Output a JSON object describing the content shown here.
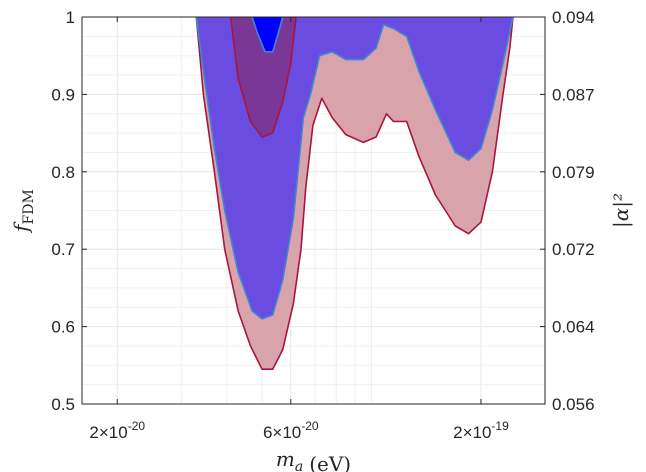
{
  "chart_data": {
    "type": "area",
    "xscale": "log",
    "xlim": [
      1.6e-20,
      3e-19
    ],
    "ylim": [
      0.5,
      1.0
    ],
    "x_ticks": [
      {
        "value": 2e-20,
        "mant": "2",
        "exp": "-20"
      },
      {
        "value": 6e-20,
        "mant": "6",
        "exp": "-20"
      },
      {
        "value": 2e-19,
        "mant": "2",
        "exp": "-19"
      }
    ],
    "y_ticks": [
      0.5,
      0.6,
      0.7,
      0.8,
      0.9,
      1
    ],
    "y_ticks_right": [
      "0.056",
      "0.064",
      "0.072",
      "0.079",
      "0.087",
      "0.094"
    ],
    "xlabel": {
      "var": "m",
      "sub": "a",
      "unit": "(eV)"
    },
    "ylabel": {
      "var": "f",
      "sub": "FDM"
    },
    "ylabel_right": "|α|²",
    "grid": true,
    "colors": {
      "outer_fill": "#d9a3ac",
      "outer_edge": "#a8153e",
      "middle_fill": "#6a4de0",
      "middle_edge": "#3f87d0",
      "inner_fill": "#0000ff",
      "overlap_fill": "#7a3796"
    },
    "regions": [
      {
        "role": "outer",
        "points": [
          [
            3.3e-20,
            1.0
          ],
          [
            3.45e-20,
            0.9
          ],
          [
            3.7e-20,
            0.8
          ],
          [
            3.95e-20,
            0.7
          ],
          [
            4.3e-20,
            0.62
          ],
          [
            4.65e-20,
            0.575
          ],
          [
            5e-20,
            0.545
          ],
          [
            5.35e-20,
            0.545
          ],
          [
            5.7e-20,
            0.57
          ],
          [
            6.1e-20,
            0.63
          ],
          [
            6.4e-20,
            0.7
          ],
          [
            6.6e-20,
            0.78
          ],
          [
            6.9e-20,
            0.86
          ],
          [
            7.3e-20,
            0.895
          ],
          [
            7.8e-20,
            0.87
          ],
          [
            8.5e-20,
            0.848
          ],
          [
            9.5e-20,
            0.838
          ],
          [
            1.03e-19,
            0.845
          ],
          [
            1.1e-19,
            0.875
          ],
          [
            1.15e-19,
            0.865
          ],
          [
            1.25e-19,
            0.865
          ],
          [
            1.35e-19,
            0.82
          ],
          [
            1.5e-19,
            0.77
          ],
          [
            1.7e-19,
            0.73
          ],
          [
            1.85e-19,
            0.72
          ],
          [
            2e-19,
            0.735
          ],
          [
            2.15e-19,
            0.8
          ],
          [
            2.3e-19,
            0.9
          ],
          [
            2.4e-19,
            0.96
          ],
          [
            2.45e-19,
            1.0
          ]
        ]
      },
      {
        "role": "middle",
        "points": [
          [
            3.3e-20,
            1.0
          ],
          [
            3.45e-20,
            0.93
          ],
          [
            3.7e-20,
            0.83
          ],
          [
            3.95e-20,
            0.75
          ],
          [
            4.3e-20,
            0.67
          ],
          [
            4.7e-20,
            0.62
          ],
          [
            5e-20,
            0.61
          ],
          [
            5.35e-20,
            0.615
          ],
          [
            5.7e-20,
            0.66
          ],
          [
            6.1e-20,
            0.74
          ],
          [
            6.5e-20,
            0.87
          ],
          [
            6.8e-20,
            0.9
          ],
          [
            7.2e-20,
            0.95
          ],
          [
            7.8e-20,
            0.955
          ],
          [
            8.5e-20,
            0.945
          ],
          [
            9.5e-20,
            0.945
          ],
          [
            1.03e-19,
            0.96
          ],
          [
            1.08e-19,
            0.99
          ],
          [
            1.15e-19,
            0.985
          ],
          [
            1.25e-19,
            0.975
          ],
          [
            1.35e-19,
            0.93
          ],
          [
            1.5e-19,
            0.88
          ],
          [
            1.7e-19,
            0.825
          ],
          [
            1.85e-19,
            0.815
          ],
          [
            2e-19,
            0.83
          ],
          [
            2.15e-19,
            0.88
          ],
          [
            2.3e-19,
            0.94
          ],
          [
            2.45e-19,
            1.0
          ]
        ]
      },
      {
        "role": "overlap",
        "points": [
          [
            4.1e-20,
            1.0
          ],
          [
            4.3e-20,
            0.92
          ],
          [
            4.65e-20,
            0.865
          ],
          [
            5e-20,
            0.845
          ],
          [
            5.35e-20,
            0.85
          ],
          [
            5.7e-20,
            0.89
          ],
          [
            6e-20,
            0.94
          ],
          [
            6.2e-20,
            1.0
          ]
        ]
      },
      {
        "role": "inner",
        "points": [
          [
            4.7e-20,
            1.0
          ],
          [
            4.85e-20,
            0.98
          ],
          [
            5.1e-20,
            0.955
          ],
          [
            5.35e-20,
            0.955
          ],
          [
            5.55e-20,
            0.98
          ],
          [
            5.7e-20,
            1.0
          ]
        ]
      }
    ]
  }
}
